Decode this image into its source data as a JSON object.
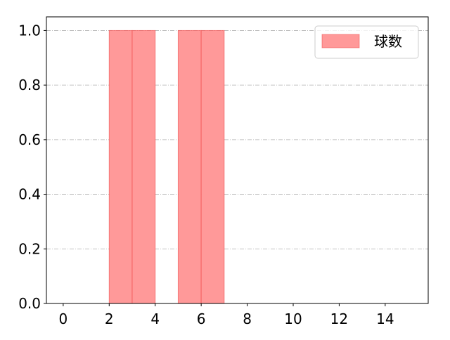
{
  "chart_data": {
    "type": "bar",
    "title": "",
    "xlabel": "",
    "ylabel": "",
    "bars": [
      {
        "x0": 2,
        "x1": 3,
        "value": 1.0
      },
      {
        "x0": 3,
        "x1": 4,
        "value": 1.0
      },
      {
        "x0": 5,
        "x1": 6,
        "value": 1.0
      },
      {
        "x0": 6,
        "x1": 7,
        "value": 1.0
      }
    ],
    "series": [
      {
        "name": "球数"
      }
    ],
    "xlim": [
      -0.73,
      15.87
    ],
    "ylim": [
      0,
      1.05
    ],
    "xticks": [
      "0",
      "2",
      "4",
      "6",
      "8",
      "10",
      "12",
      "14"
    ],
    "yticks": [
      "0.0",
      "0.2",
      "0.4",
      "0.6",
      "0.8",
      "1.0"
    ],
    "grid": "horizontal dash-dot",
    "legend_position": "top-right",
    "colors": {
      "bar_fill": "#ff9999",
      "bar_edge": "#ee4444",
      "grid": "#b0b0b0"
    }
  }
}
